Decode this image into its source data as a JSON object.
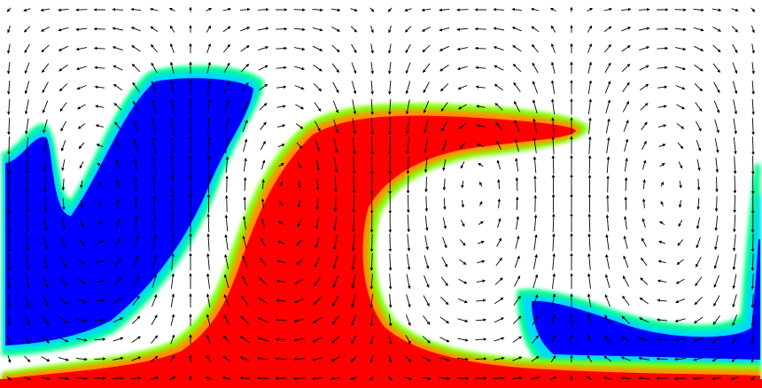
{
  "visualization": {
    "kind": "fluid-convection-snapshot",
    "background_color": "#ffffff",
    "arrow_color": "#000000",
    "colormap": [
      "#0000ff",
      "#00c8ff",
      "#00ffb0",
      "#7fff00",
      "#ffff00",
      "#ff8000",
      "#ff0000"
    ],
    "hot_plume_color": "#ff0000",
    "cold_plume_color": "#0000ff",
    "vortex_count": 4,
    "arrow_grid": {
      "cols": 42,
      "rows": 20
    }
  }
}
